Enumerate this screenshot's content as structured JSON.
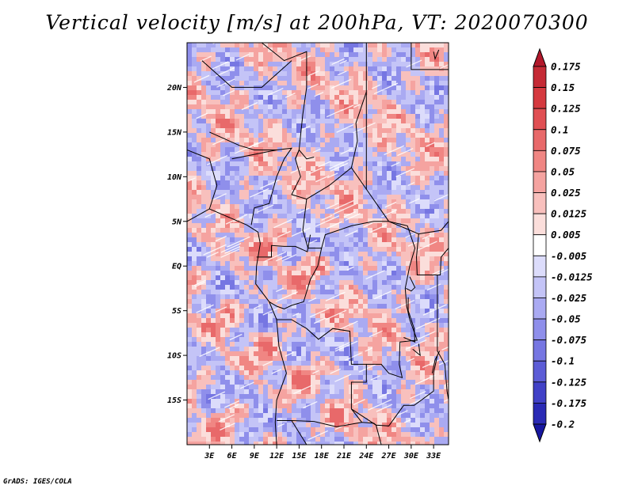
{
  "title": "Vertical velocity [m/s] at 200hPa, VT: 2020070300",
  "credit": "GrADS: IGES/COLA",
  "map": {
    "lon_range": [
      0,
      35
    ],
    "lat_range": [
      -20,
      25
    ],
    "y_ticks": [
      "20N",
      "15N",
      "10N",
      "5N",
      "EQ",
      "5S",
      "10S",
      "15S"
    ],
    "y_tick_values": [
      20,
      15,
      10,
      5,
      0,
      -5,
      -10,
      -15
    ],
    "x_ticks": [
      "3E",
      "6E",
      "9E",
      "12E",
      "15E",
      "18E",
      "21E",
      "24E",
      "27E",
      "30E",
      "33E"
    ],
    "x_tick_values": [
      3,
      6,
      9,
      12,
      15,
      18,
      21,
      24,
      27,
      30,
      33
    ]
  },
  "colorbar": {
    "labels": [
      "0.175",
      "0.15",
      "0.125",
      "0.1",
      "0.075",
      "0.05",
      "0.025",
      "0.0125",
      "0.005",
      "-0.005",
      "-0.0125",
      "-0.025",
      "-0.05",
      "-0.075",
      "-0.1",
      "-0.125",
      "-0.175",
      "-0.2"
    ],
    "colors": [
      "#b2182b",
      "#c52a35",
      "#d5393f",
      "#e04f53",
      "#e8696a",
      "#f08683",
      "#f5a3a0",
      "#f8c0bd",
      "#fbdedb",
      "#ffffff",
      "#dcdcfb",
      "#c4c4f7",
      "#aaaaf2",
      "#8f8feb",
      "#7676e2",
      "#5c5cd6",
      "#4141c7",
      "#2a2ab5",
      "#1717a0"
    ]
  }
}
